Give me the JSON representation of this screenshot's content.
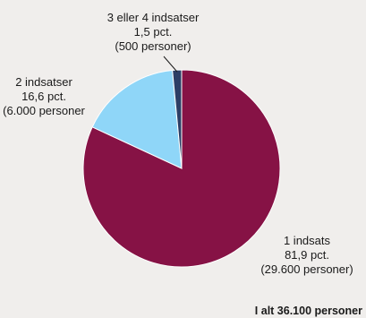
{
  "chart_data": {
    "type": "pie",
    "slices": [
      {
        "name": "1 indsats",
        "value": 81.9,
        "percent_label": "81,9 pct.",
        "count_label": "(29.600 personer)",
        "color": "#861245"
      },
      {
        "name": "2 indsatser",
        "value": 16.6,
        "percent_label": "16,6 pct.",
        "count_label": "(6.000 personer",
        "color": "#8fd6f8"
      },
      {
        "name": "3 eller 4 indsatser",
        "value": 1.5,
        "percent_label": "1,5 pct.",
        "count_label": "(500 personer)",
        "color": "#2c3e66"
      }
    ],
    "total_label": "I alt 36.100 personer",
    "start_angle_deg": 0,
    "direction": "clockwise"
  }
}
